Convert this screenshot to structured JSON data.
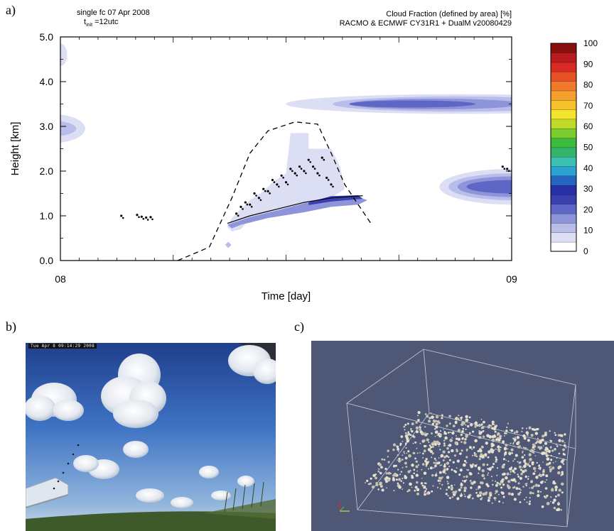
{
  "panels": {
    "a": "a)",
    "b": "b)",
    "c": "c)"
  },
  "header": {
    "left_line1": "single fc  07 Apr 2008",
    "left_line2_main": "t",
    "left_line2_sub": "init",
    "left_line2_rest": " =12utc",
    "right_line1": "Cloud Fraction (defined by area)  [%]",
    "right_line2": "RACMO & ECMWF CY31R1 + DualM v20080429"
  },
  "chart_data": {
    "type": "heatmap",
    "title": "Cloud Fraction (defined by area)  [%]",
    "xlabel": "Time  [day]",
    "ylabel": "Height  [km]",
    "xlim": [
      0,
      1
    ],
    "ylim": [
      0.0,
      5.0
    ],
    "x_ticks": [
      "08",
      "09"
    ],
    "y_ticks": [
      "0.0",
      "1.0",
      "2.0",
      "3.0",
      "4.0",
      "5.0"
    ],
    "colorbar": {
      "ticks": [
        "0",
        "10",
        "20",
        "30",
        "40",
        "50",
        "60",
        "70",
        "80",
        "90",
        "100"
      ],
      "colors": [
        "#ffffff",
        "#dcdff4",
        "#b8bdea",
        "#8d94da",
        "#5f67c6",
        "#3a3fb0",
        "#2530a6",
        "#2565c2",
        "#2aa3d4",
        "#3ac0b0",
        "#36b36a",
        "#3dbb3d",
        "#7ccc2e",
        "#bfd928",
        "#f2e42a",
        "#f6c22c",
        "#f5a02e",
        "#ef7a2a",
        "#e85026",
        "#d82a22",
        "#b81c1c",
        "#8a1010"
      ]
    },
    "series": [
      {
        "kind": "cloud_fraction",
        "regions": [
          {
            "t": [
              0.0,
              0.08
            ],
            "z": [
              2.6,
              3.2
            ],
            "max_pct": 5
          },
          {
            "t": [
              0.0,
              0.03
            ],
            "z": [
              4.35,
              4.85
            ],
            "max_pct": 5
          },
          {
            "t": [
              0.37,
              0.68
            ],
            "z": [
              0.3,
              2.6
            ],
            "max_pct": 15
          },
          {
            "t": [
              0.62,
              1.0
            ],
            "z": [
              3.3,
              3.7
            ],
            "max_pct": 18
          },
          {
            "t": [
              0.83,
              1.0
            ],
            "z": [
              1.3,
              2.0
            ],
            "max_pct": 20
          }
        ]
      },
      {
        "kind": "observed_cloud_base_points",
        "points": [
          [
            0.135,
            1.0
          ],
          [
            0.17,
            1.02
          ],
          [
            0.18,
            0.98
          ],
          [
            0.19,
            0.96
          ],
          [
            0.2,
            0.97
          ],
          [
            0.39,
            1.05
          ],
          [
            0.4,
            1.2
          ],
          [
            0.41,
            1.3
          ],
          [
            0.42,
            1.25
          ],
          [
            0.43,
            1.5
          ],
          [
            0.44,
            1.4
          ],
          [
            0.45,
            1.6
          ],
          [
            0.46,
            1.55
          ],
          [
            0.47,
            1.8
          ],
          [
            0.48,
            1.7
          ],
          [
            0.49,
            1.9
          ],
          [
            0.5,
            1.75
          ],
          [
            0.51,
            2.05
          ],
          [
            0.52,
            1.95
          ],
          [
            0.53,
            2.1
          ],
          [
            0.54,
            2.0
          ],
          [
            0.55,
            2.25
          ],
          [
            0.56,
            2.1
          ],
          [
            0.57,
            1.95
          ],
          [
            0.58,
            2.3
          ],
          [
            0.59,
            1.85
          ],
          [
            0.6,
            1.7
          ],
          [
            0.98,
            2.1
          ],
          [
            0.99,
            2.05
          ]
        ]
      },
      {
        "kind": "dashed_envelope",
        "points": [
          [
            0.26,
            0.0
          ],
          [
            0.33,
            0.3
          ],
          [
            0.38,
            1.4
          ],
          [
            0.42,
            2.4
          ],
          [
            0.46,
            2.9
          ],
          [
            0.52,
            3.1
          ],
          [
            0.57,
            3.05
          ],
          [
            0.6,
            2.4
          ],
          [
            0.63,
            1.7
          ],
          [
            0.67,
            1.1
          ],
          [
            0.69,
            0.8
          ]
        ]
      },
      {
        "kind": "cloud_base_line",
        "points": [
          [
            0.37,
            0.83
          ],
          [
            0.42,
            1.0
          ],
          [
            0.48,
            1.15
          ],
          [
            0.54,
            1.3
          ],
          [
            0.6,
            1.4
          ],
          [
            0.67,
            1.45
          ]
        ]
      }
    ]
  },
  "photo": {
    "timestamp": "Tue Apr 8 09:14:29 2008"
  }
}
